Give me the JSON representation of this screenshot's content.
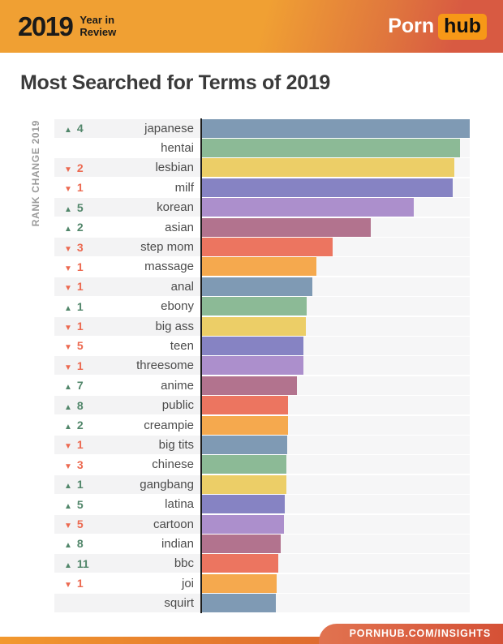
{
  "header": {
    "year": "2019",
    "subtitle_line1": "Year in",
    "subtitle_line2": "Review",
    "logo_part1": "Porn",
    "logo_part2": "hub"
  },
  "title": "Most Searched for Terms of 2019",
  "footer": {
    "text": "PORNHUB.COM/INSIGHTS"
  },
  "colors": {
    "header_gradient_left": "#f0a033",
    "header_gradient_right": "#d85a42",
    "logo_badge": "#f79817",
    "rank_up": "#51866a",
    "rank_down": "#ec6950",
    "row_band": "#f3f3f4",
    "bar_track": "#f6f6f7",
    "axis_line": "#1d1d1d"
  },
  "chart_data": {
    "type": "bar",
    "orientation": "horizontal",
    "title": "Most Searched for Terms of 2019",
    "axis_label": "RANK CHANGE 2019",
    "legend": false,
    "grid": false,
    "value_axis_labels": false,
    "categories": [
      "japanese",
      "hentai",
      "lesbian",
      "milf",
      "korean",
      "asian",
      "step mom",
      "massage",
      "anal",
      "ebony",
      "big ass",
      "teen",
      "threesome",
      "anime",
      "public",
      "creampie",
      "big tits",
      "chinese",
      "gangbang",
      "latina",
      "cartoon",
      "indian",
      "bbc",
      "joi",
      "squirt"
    ],
    "values_pct_of_max": [
      100,
      96.4,
      94.2,
      93.6,
      79.1,
      63.0,
      48.8,
      42.7,
      41.2,
      39.1,
      38.8,
      37.9,
      37.8,
      35.5,
      32.1,
      32.0,
      31.9,
      31.6,
      31.4,
      30.9,
      30.5,
      29.3,
      28.5,
      28.0,
      27.5
    ],
    "rank_change": [
      4,
      null,
      -2,
      -1,
      5,
      2,
      -3,
      -1,
      -1,
      1,
      -1,
      -5,
      -1,
      7,
      8,
      2,
      -1,
      -3,
      1,
      5,
      -5,
      8,
      11,
      -1,
      null
    ],
    "up_glyph": "▲",
    "down_glyph": "▼",
    "palette": [
      "#7f9ab4",
      "#8cba96",
      "#ecce67",
      "#8683c3",
      "#ac8fcc",
      "#b2738e",
      "#ec7560",
      "#f5a94e"
    ]
  }
}
